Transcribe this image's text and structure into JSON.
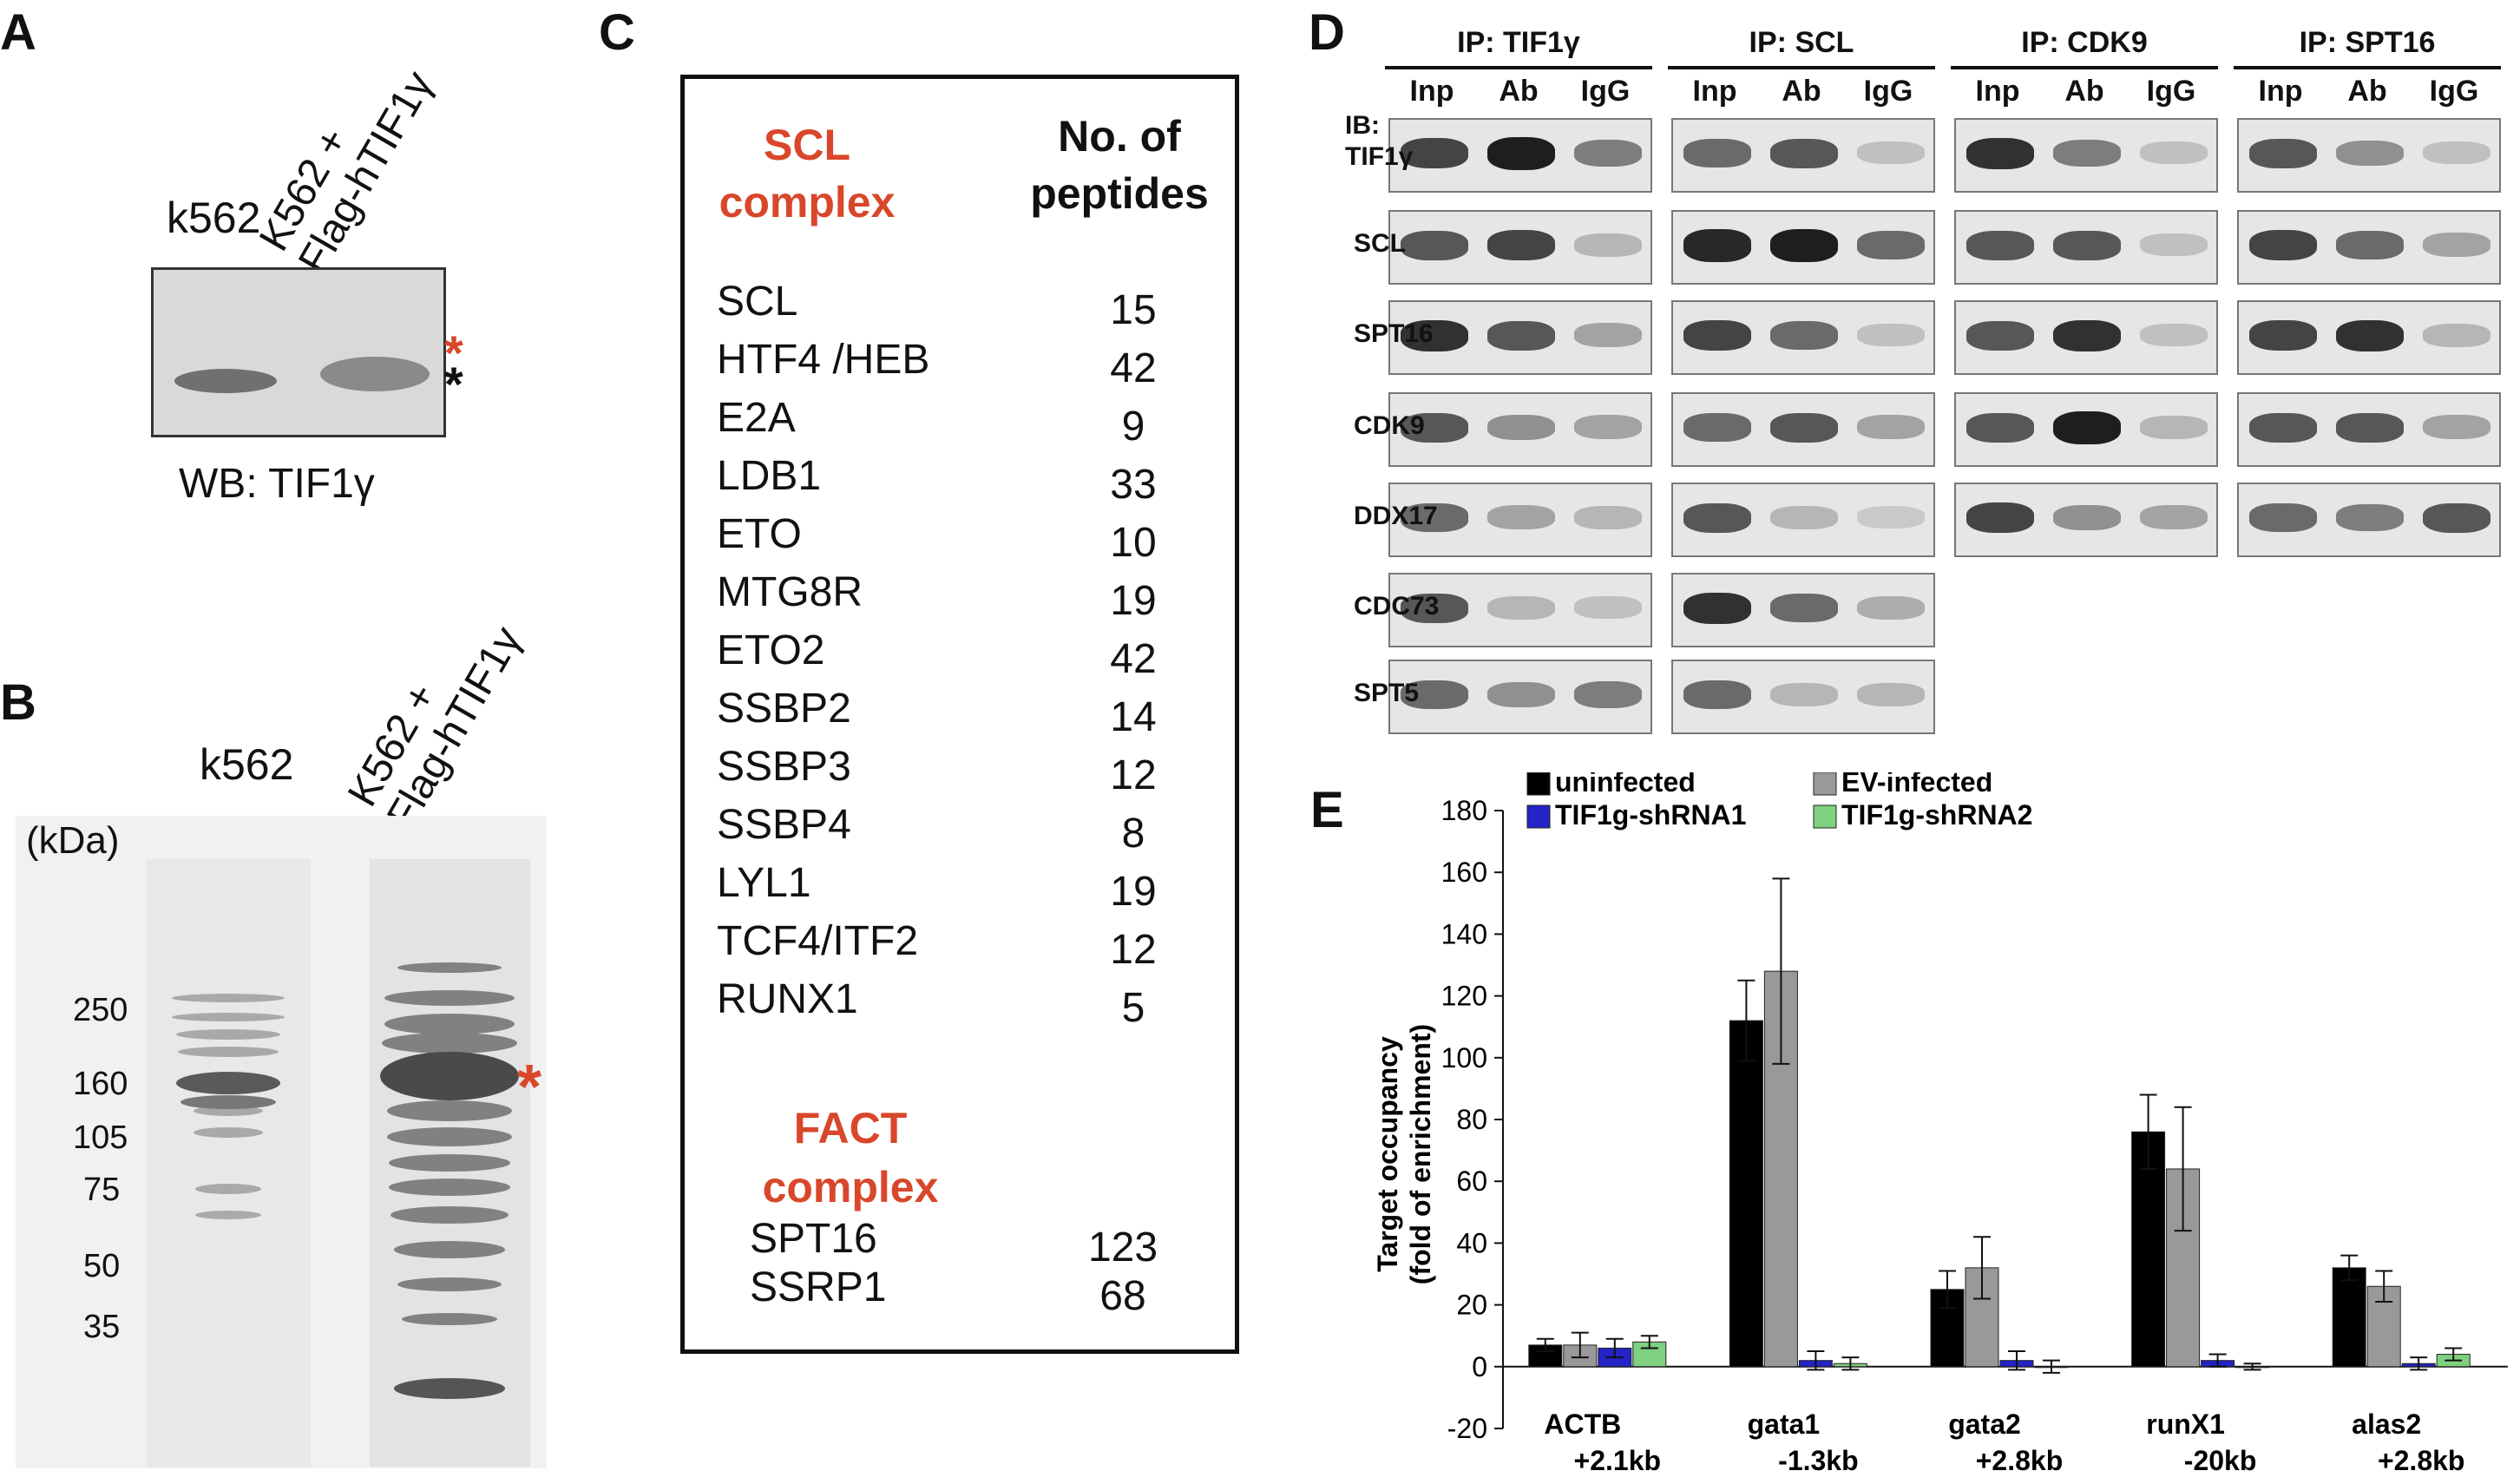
{
  "panels": {
    "A": "A",
    "B": "B",
    "C": "C",
    "D": "D",
    "E": "E"
  },
  "panelA": {
    "lane1": "k562",
    "lane2_line1": "K562 +",
    "lane2_line2": "Flag-hTIF1γ",
    "wb": "WB: TIF1γ",
    "star": "*"
  },
  "panelB": {
    "lane1": "k562",
    "lane2_line1": "K562 +",
    "lane2_line2": "Flag-hTIF1γ",
    "unit": "(kDa)",
    "markers": [
      "250",
      "160",
      "105",
      "75",
      "50",
      "35"
    ],
    "star": "*"
  },
  "panelC": {
    "scl_header_line1": "SCL",
    "scl_header_line2": "complex",
    "count_header_line1": "No. of",
    "count_header_line2": "peptides",
    "scl_rows": [
      {
        "name": "SCL",
        "count": "15"
      },
      {
        "name": "HTF4 /HEB",
        "count": "42"
      },
      {
        "name": "E2A",
        "count": "9"
      },
      {
        "name": "LDB1",
        "count": "33"
      },
      {
        "name": "ETO",
        "count": "10"
      },
      {
        "name": "MTG8R",
        "count": "19"
      },
      {
        "name": "ETO2",
        "count": "42"
      },
      {
        "name": "SSBP2",
        "count": "14"
      },
      {
        "name": "SSBP3",
        "count": "12"
      },
      {
        "name": "SSBP4",
        "count": "8"
      },
      {
        "name": "LYL1",
        "count": "19"
      },
      {
        "name": "TCF4/ITF2",
        "count": "12"
      },
      {
        "name": "RUNX1",
        "count": "5"
      }
    ],
    "fact_header_line1": "FACT",
    "fact_header_line2": "complex",
    "fact_rows": [
      {
        "name": "SPT16",
        "count": "123"
      },
      {
        "name": "SSRP1",
        "count": "68"
      }
    ]
  },
  "panelD": {
    "ips": [
      "IP: TIF1γ",
      "IP: SCL",
      "IP: CDK9",
      "IP: SPT16"
    ],
    "lanes": [
      "Inp",
      "Ab",
      "IgG"
    ],
    "ib_prefix": "IB:",
    "rows": [
      "TIF1γ",
      "SCL",
      "SPT16",
      "CDK9",
      "DDX17",
      "CDC73",
      "SPT5"
    ]
  },
  "chart_data": {
    "type": "bar",
    "categories": [
      "ACTB +2.1kb",
      "gata1 -1.3kb",
      "gata2 +2.8kb",
      "runX1 -20kb",
      "alas2 +2.8kb"
    ],
    "category_lines": [
      [
        "ACTB",
        "+2.1kb"
      ],
      [
        "gata1",
        "-1.3kb"
      ],
      [
        "gata2",
        "+2.8kb"
      ],
      [
        "runX1",
        "-20kb"
      ],
      [
        "alas2",
        "+2.8kb"
      ]
    ],
    "series": [
      {
        "name": "uninfected",
        "color": "#000000",
        "values": [
          7,
          112,
          25,
          76,
          32
        ],
        "errors": [
          2,
          13,
          6,
          12,
          4
        ]
      },
      {
        "name": "EV-infected",
        "color": "#999999",
        "values": [
          7,
          128,
          32,
          64,
          26
        ],
        "errors": [
          4,
          30,
          10,
          20,
          5
        ]
      },
      {
        "name": "TIF1g-shRNA1",
        "color": "#2323c8",
        "values": [
          6,
          2,
          2,
          2,
          1
        ],
        "errors": [
          3,
          3,
          3,
          2,
          2
        ]
      },
      {
        "name": "TIF1g-shRNA2",
        "color": "#7ed17e",
        "values": [
          8,
          1,
          0,
          0,
          4
        ],
        "errors": [
          2,
          2,
          2,
          1,
          2
        ]
      }
    ],
    "ylabel_line1": "Target occupancy",
    "ylabel_line2": "(fold of enrichment)",
    "ylim": [
      -20,
      180
    ],
    "yticks": [
      -20,
      0,
      20,
      40,
      60,
      80,
      100,
      120,
      140,
      160,
      180
    ],
    "legend": "top"
  }
}
